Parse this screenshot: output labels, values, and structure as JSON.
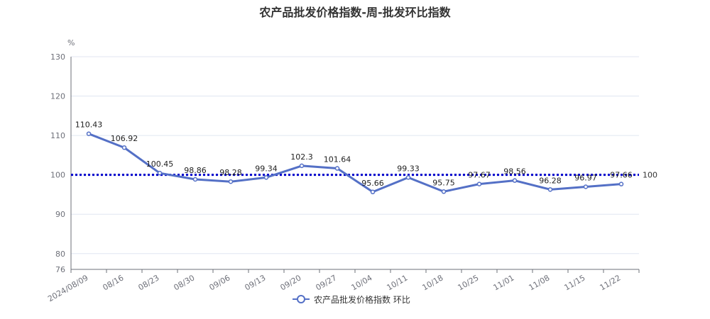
{
  "chart_data": {
    "type": "line",
    "title": "农产品批发价格指数-周-批发环比指数",
    "ylabel": "%",
    "xlabel": "",
    "ylim": [
      76,
      130
    ],
    "yticks": [
      76,
      80,
      90,
      100,
      110,
      120,
      130
    ],
    "grid": true,
    "legend_position": "bottom-center",
    "reference_line": {
      "value": 100,
      "label": "100",
      "color": "#0000cc",
      "style": "dotted"
    },
    "categories": [
      "2024/08/09",
      "08/16",
      "08/23",
      "08/30",
      "09/06",
      "09/13",
      "09/20",
      "09/27",
      "10/04",
      "10/11",
      "10/18",
      "10/25",
      "11/01",
      "11/08",
      "11/15",
      "11/22"
    ],
    "series": [
      {
        "name": "农产品批发价格指数 环比",
        "color": "#5470c6",
        "values": [
          110.43,
          106.92,
          100.45,
          98.86,
          98.28,
          99.34,
          102.3,
          101.64,
          95.66,
          99.33,
          95.75,
          97.67,
          98.56,
          96.28,
          96.97,
          97.66
        ]
      }
    ]
  }
}
